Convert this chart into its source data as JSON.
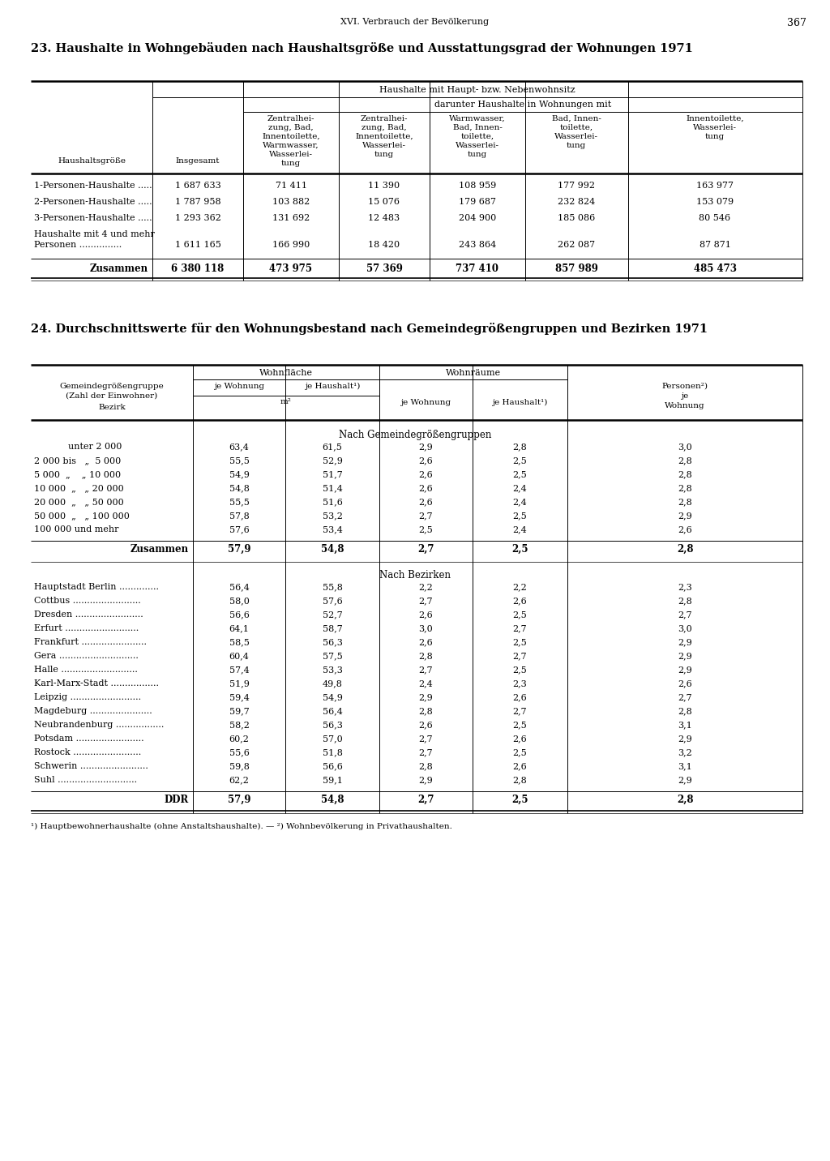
{
  "page_header": "XVI. Verbrauch der Bevölkerung",
  "page_number": "367",
  "table1_title": "23. Haushalte in Wohngebäuden nach Haushaltsgröße und Ausstattungsgrad der Wohnungen 1971",
  "table1_header_main": "Haushalte mit Haupt- bzw. Nebenwohnsitz",
  "table1_header_sub": "darunter Haushalte in Wohnungen mit",
  "table1_col0": "Haushaltsgröße",
  "table1_col1": "Insgesamt",
  "table1_col2": "Zentralhei-\nzung, Bad,\nInnentoilette,\nWarmwasser,\nWasserlei-\ntung",
  "table1_col3": "Zentralhei-\nzung, Bad,\nInnentoilette,\nWasserlei-\ntung",
  "table1_col4": "Warmwasser,\nBad, Innen-\ntoilette,\nWasserlei-\ntung",
  "table1_col5": "Bad, Innen-\ntoilette,\nWasserlei-\ntung",
  "table1_col6": "Innentoilette,\nWasserlei-\ntung",
  "table1_rows": [
    [
      "1-Personen-Haushalte .....",
      "1 687 633",
      "71 411",
      "11 390",
      "108 959",
      "177 992",
      "163 977"
    ],
    [
      "2-Personen-Haushalte .....",
      "1 787 958",
      "103 882",
      "15 076",
      "179 687",
      "232 824",
      "153 079"
    ],
    [
      "3-Personen-Haushalte .....",
      "1 293 362",
      "131 692",
      "12 483",
      "204 900",
      "185 086",
      "80 546"
    ],
    [
      "Haushalte mit 4 und mehr",
      "1 611 165",
      "166 990",
      "18 420",
      "243 864",
      "262 087",
      "87 871"
    ]
  ],
  "table1_row3_line2": "Personen ...............",
  "table1_total_label": "Zusammen",
  "table1_total": [
    "6 380 118",
    "473 975",
    "57 369",
    "737 410",
    "857 989",
    "485 473"
  ],
  "table2_title": "24. Durchschnittswerte für den Wohnungsbestand nach Gemeindegrößengruppen und Bezirken 1971",
  "table2_col0a": "Gemeindegrößengruppe",
  "table2_col0b": "(Zahl der Einwohner)",
  "table2_col0c": "Bezirk",
  "table2_header_wohnflaeche": "Wohnfläche",
  "table2_header_wohnraeume": "Wohnräume",
  "table2_col1": "je Wohnung",
  "table2_col2": "je Haushalt¹)",
  "table2_col3": "je Wohnung",
  "table2_col4": "je Haushalt¹)",
  "table2_col5": "Personen²)\nje\nWohnung",
  "table2_unit": "m²",
  "table2_section1": "Nach Gemeindegrößengruppen",
  "table2_rows1": [
    [
      "            unter 2 000",
      "63,4",
      "61,5",
      "2,9",
      "2,8",
      "3,0"
    ],
    [
      "2 000 bis   „  5 000",
      "55,5",
      "52,9",
      "2,6",
      "2,5",
      "2,8"
    ],
    [
      "5 000  „    „ 10 000",
      "54,9",
      "51,7",
      "2,6",
      "2,5",
      "2,8"
    ],
    [
      "10 000  „   „ 20 000",
      "54,8",
      "51,4",
      "2,6",
      "2,4",
      "2,8"
    ],
    [
      "20 000  „   „ 50 000",
      "55,5",
      "51,6",
      "2,6",
      "2,4",
      "2,8"
    ],
    [
      "50 000  „   „ 100 000",
      "57,8",
      "53,2",
      "2,7",
      "2,5",
      "2,9"
    ],
    [
      "100 000 und mehr",
      "57,6",
      "53,4",
      "2,5",
      "2,4",
      "2,6"
    ]
  ],
  "table2_total1_label": "Zusammen",
  "table2_total1": [
    "57,9",
    "54,8",
    "2,7",
    "2,5",
    "2,8"
  ],
  "table2_section2": "Nach Bezirken",
  "table2_rows2": [
    [
      "Hauptstadt Berlin ..............",
      "56,4",
      "55,8",
      "2,2",
      "2,2",
      "2,3"
    ],
    [
      "Cottbus ........................",
      "58,0",
      "57,6",
      "2,7",
      "2,6",
      "2,8"
    ],
    [
      "Dresden ........................",
      "56,6",
      "52,7",
      "2,6",
      "2,5",
      "2,7"
    ],
    [
      "Erfurt ..........................",
      "64,1",
      "58,7",
      "3,0",
      "2,7",
      "3,0"
    ],
    [
      "Frankfurt .......................",
      "58,5",
      "56,3",
      "2,6",
      "2,5",
      "2,9"
    ],
    [
      "Gera ............................",
      "60,4",
      "57,5",
      "2,8",
      "2,7",
      "2,9"
    ],
    [
      "Halle ...........................",
      "57,4",
      "53,3",
      "2,7",
      "2,5",
      "2,9"
    ],
    [
      "Karl-Marx-Stadt .................",
      "51,9",
      "49,8",
      "2,4",
      "2,3",
      "2,6"
    ],
    [
      "Leipzig .........................",
      "59,4",
      "54,9",
      "2,9",
      "2,6",
      "2,7"
    ],
    [
      "Magdeburg ......................",
      "59,7",
      "56,4",
      "2,8",
      "2,7",
      "2,8"
    ],
    [
      "Neubrandenburg .................",
      "58,2",
      "56,3",
      "2,6",
      "2,5",
      "3,1"
    ],
    [
      "Potsdam ........................",
      "60,2",
      "57,0",
      "2,7",
      "2,6",
      "2,9"
    ],
    [
      "Rostock ........................",
      "55,6",
      "51,8",
      "2,7",
      "2,5",
      "3,2"
    ],
    [
      "Schwerin ........................",
      "59,8",
      "56,6",
      "2,8",
      "2,6",
      "3,1"
    ],
    [
      "Suhl ............................",
      "62,2",
      "59,1",
      "2,9",
      "2,8",
      "2,9"
    ]
  ],
  "table2_total2_label": "DDR",
  "table2_total2": [
    "57,9",
    "54,8",
    "2,7",
    "2,5",
    "2,8"
  ],
  "footnote": "¹) Hauptbewohnerhaushalte (ohne Anstaltshaushalte). — ²) Wohnbevölkerung in Privathaushalten."
}
